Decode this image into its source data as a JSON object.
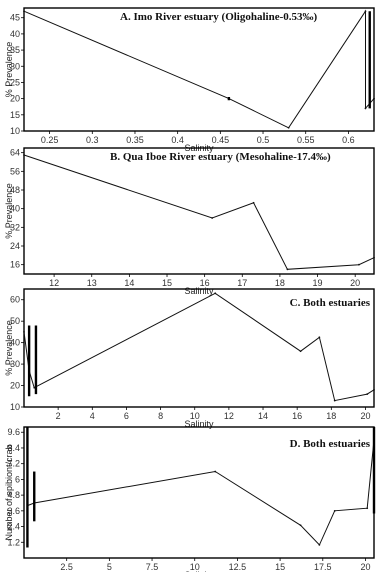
{
  "chart_data": [
    {
      "type": "line",
      "title": "A. Imo River estuary (Oligohaline-0.53‰)",
      "xlabel": "Salinity",
      "ylabel": "% Prevalence",
      "xlim": [
        0.22,
        0.63
      ],
      "ylim": [
        10,
        48
      ],
      "xticks": [
        "0.25",
        "0.3",
        "0.35",
        "0.4",
        "0.45",
        "0.5",
        "0.55",
        "0.6"
      ],
      "xtick_values": [
        0.25,
        0.3,
        0.35,
        0.4,
        0.45,
        0.5,
        0.55,
        0.6
      ],
      "yticks": [
        "10",
        "15",
        "20",
        "25",
        "30",
        "35",
        "40",
        "45"
      ],
      "ytick_values": [
        10,
        15,
        20,
        25,
        30,
        35,
        40,
        45
      ],
      "x": [
        0.22,
        0.46,
        0.53,
        0.62,
        0.62,
        0.63
      ],
      "y": [
        47,
        20,
        11,
        47,
        17,
        20
      ],
      "error_bars": [
        {
          "x": 0.46,
          "low": 19.5,
          "high": 20.5
        },
        {
          "x": 0.625,
          "low": 17,
          "high": 47
        }
      ]
    },
    {
      "type": "line",
      "title": "B. Qua Iboe River estuary (Mesohaline-17.4‰)",
      "xlabel": "Salinity",
      "ylabel": "% Prevalence",
      "xlim": [
        11.2,
        20.5
      ],
      "ylim": [
        12,
        66
      ],
      "xticks": [
        "12",
        "13",
        "14",
        "15",
        "16",
        "17",
        "18",
        "19",
        "20"
      ],
      "xtick_values": [
        12,
        13,
        14,
        15,
        16,
        17,
        18,
        19,
        20
      ],
      "yticks": [
        "16",
        "24",
        "32",
        "40",
        "48",
        "56",
        "64"
      ],
      "ytick_values": [
        16,
        24,
        32,
        40,
        48,
        56,
        64
      ],
      "x": [
        11.2,
        16.2,
        17.3,
        18.2,
        20.1,
        20.5
      ],
      "y": [
        63,
        36,
        42.5,
        14,
        16,
        19
      ],
      "error_bars": []
    },
    {
      "type": "line",
      "title": "C. Both estuaries",
      "xlabel": "Salinity",
      "ylabel": "% Prevalence",
      "xlim": [
        0,
        20.5
      ],
      "ylim": [
        10,
        65
      ],
      "xticks": [
        "2",
        "4",
        "6",
        "8",
        "10",
        "12",
        "14",
        "16",
        "18",
        "20"
      ],
      "xtick_values": [
        2,
        4,
        6,
        8,
        10,
        12,
        14,
        16,
        18,
        20
      ],
      "yticks": [
        "10",
        "20",
        "30",
        "40",
        "50",
        "60"
      ],
      "ytick_values": [
        10,
        20,
        30,
        40,
        50,
        60
      ],
      "x": [
        0,
        0.3,
        0.6,
        11.2,
        16.2,
        17.3,
        18.2,
        20.1,
        20.5
      ],
      "y": [
        45,
        27,
        19,
        63,
        36,
        42.5,
        13,
        16,
        18
      ],
      "error_bars": [
        {
          "x": 0.3,
          "low": 15,
          "high": 48
        },
        {
          "x": 0.7,
          "low": 16,
          "high": 48
        }
      ]
    },
    {
      "type": "line",
      "title": "D. Both estuaries",
      "xlabel": "Salinity",
      "ylabel": "Number of epibiont/crab",
      "xlim": [
        0,
        20.5
      ],
      "ylim": [
        0,
        10
      ],
      "xticks": [
        "2.5",
        "5",
        "7.5",
        "10",
        "12.5",
        "15",
        "17.5",
        "20"
      ],
      "xtick_values": [
        2.5,
        5,
        7.5,
        10,
        12.5,
        15,
        17.5,
        20
      ],
      "yticks": [
        "1.2",
        "2.4",
        "3.6",
        "4.8",
        "6",
        "7.2",
        "8.4",
        "9.6"
      ],
      "ytick_values": [
        1.2,
        2.4,
        3.6,
        4.8,
        6,
        7.2,
        8.4,
        9.6
      ],
      "x": [
        0.2,
        0.6,
        11.2,
        16.2,
        17.3,
        18.2,
        20.1,
        20.5
      ],
      "y": [
        4,
        4.2,
        6.6,
        2.5,
        1,
        3.6,
        3.8,
        9
      ],
      "error_bars": [
        {
          "x": 0.2,
          "low": 0.8,
          "high": 10
        },
        {
          "x": 0.6,
          "low": 2.8,
          "high": 6.6
        },
        {
          "x": 20.5,
          "low": 3.4,
          "high": 10
        }
      ]
    }
  ]
}
